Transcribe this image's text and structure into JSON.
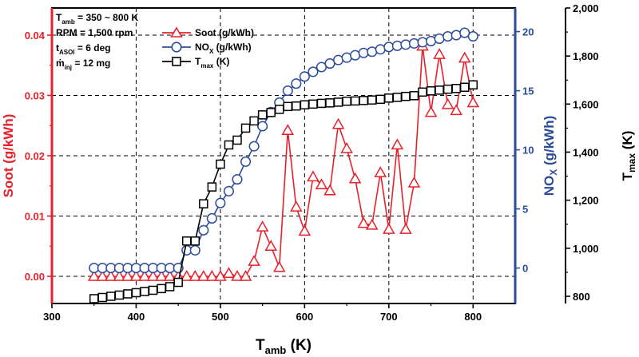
{
  "chart_data": {
    "type": "line",
    "title": "",
    "x": [
      350,
      360,
      370,
      380,
      390,
      400,
      410,
      420,
      430,
      440,
      450,
      460,
      470,
      480,
      490,
      500,
      510,
      520,
      530,
      540,
      550,
      560,
      570,
      580,
      590,
      600,
      610,
      620,
      630,
      640,
      650,
      660,
      670,
      680,
      690,
      700,
      710,
      720,
      730,
      740,
      750,
      760,
      770,
      780,
      790,
      800
    ],
    "xlabel": {
      "main": "T",
      "sub": "amb",
      "unit": " (K)"
    },
    "xlim": [
      300,
      850
    ],
    "xticks": [
      300,
      400,
      500,
      600,
      700,
      800
    ],
    "annotations": [
      {
        "main": "T",
        "sub": "amb",
        "rest": " = 350 ~ 800 K"
      },
      {
        "main": "RPM",
        "sub": "",
        "rest": " = 1,500 rpm"
      },
      {
        "main": "t",
        "sub": "ASOI",
        "rest": " = 6 deg"
      },
      {
        "main": "ṁ",
        "sub": "inj",
        "rest": " = 12 mg"
      }
    ],
    "axes": {
      "soot": {
        "label": "Soot (g/kWh)",
        "lim": [
          -0.0045,
          0.0445
        ],
        "ticks": [
          0.0,
          0.01,
          0.02,
          0.03,
          0.04
        ],
        "tick_labels": [
          "0.00",
          "0.01",
          "0.02",
          "0.03",
          "0.04"
        ],
        "color": "#e8202a"
      },
      "nox": {
        "label_main": "NO",
        "label_sub": "X",
        "label_unit": " (g/kWh)",
        "lim": [
          -3,
          22
        ],
        "ticks": [
          0,
          5,
          10,
          15,
          20
        ],
        "tick_labels": [
          "0",
          "5",
          "10",
          "15",
          "20"
        ],
        "color": "#2b4c9b"
      },
      "tmax": {
        "label_main": "T",
        "label_sub": "max",
        "label_unit": " (K)",
        "lim": [
          770,
          2000
        ],
        "ticks": [
          800,
          1000,
          1200,
          1400,
          1600,
          1800,
          2000
        ],
        "tick_labels": [
          "800",
          "1,000",
          "1,200",
          "1,400",
          "1,600",
          "1,800",
          "2,000"
        ],
        "color": "#000000"
      }
    },
    "series": [
      {
        "name": "Soot (g/kWh)",
        "legend_main": "Soot",
        "legend_sub": "",
        "legend_unit": " (g/kWh)",
        "axis": "soot",
        "marker": "triangle",
        "color": "#e8202a",
        "x": [
          350,
          360,
          370,
          380,
          390,
          400,
          410,
          420,
          430,
          440,
          450,
          460,
          470,
          480,
          490,
          500,
          510,
          520,
          530,
          540,
          550,
          560,
          570,
          580,
          590,
          600,
          610,
          620,
          630,
          640,
          650,
          660,
          670,
          680,
          690,
          700,
          710,
          720,
          730,
          740,
          750,
          760,
          770,
          780,
          790,
          800
        ],
        "values": [
          0,
          0,
          0,
          0,
          0,
          0,
          0,
          0,
          0,
          0,
          0,
          0,
          0,
          0,
          0,
          0,
          0.0005,
          0,
          0,
          0.0025,
          0.0082,
          0.005,
          0.0015,
          0.0242,
          0.0115,
          0.0075,
          0.0165,
          0.0152,
          0.0142,
          0.0252,
          0.0212,
          0.0162,
          0.0088,
          0.0085,
          0.0172,
          0.0078,
          0.0218,
          0.0078,
          0.0155,
          0.0382,
          0.0272,
          0.0368,
          0.0285,
          0.0275,
          0.0362,
          0.0288
        ]
      },
      {
        "name": "NOX (g/kWh)",
        "legend_main": "NO",
        "legend_sub": "X",
        "legend_unit": " (g/kWh)",
        "axis": "nox",
        "marker": "circle",
        "color": "#2b4c9b",
        "x": [
          350,
          360,
          370,
          380,
          390,
          400,
          410,
          420,
          430,
          440,
          450,
          460,
          470,
          480,
          490,
          500,
          510,
          520,
          530,
          540,
          550,
          560,
          570,
          580,
          590,
          600,
          610,
          620,
          630,
          640,
          650,
          660,
          670,
          680,
          690,
          700,
          710,
          720,
          730,
          740,
          750,
          760,
          770,
          780,
          790,
          800
        ],
        "values": [
          0,
          0,
          0,
          0,
          0,
          0,
          0,
          0,
          0,
          0,
          0,
          1.5,
          1.5,
          3.2,
          4.2,
          5.5,
          6.5,
          7.5,
          9.0,
          10.3,
          12.0,
          13.2,
          14.0,
          15.0,
          15.6,
          16.2,
          16.6,
          17.0,
          17.3,
          17.6,
          17.8,
          18.0,
          18.2,
          18.3,
          18.5,
          18.7,
          18.8,
          18.9,
          19.0,
          19.1,
          19.2,
          19.4,
          19.6,
          19.7,
          19.9,
          19.6
        ]
      },
      {
        "name": "Tmax (K)",
        "legend_main": "T",
        "legend_sub": "max",
        "legend_unit": " (K)",
        "axis": "tmax",
        "marker": "square",
        "color": "#000000",
        "x": [
          350,
          360,
          370,
          380,
          390,
          400,
          410,
          420,
          430,
          440,
          450,
          460,
          470,
          480,
          490,
          500,
          510,
          520,
          530,
          540,
          550,
          560,
          570,
          580,
          590,
          600,
          610,
          620,
          630,
          640,
          650,
          660,
          670,
          680,
          690,
          700,
          710,
          720,
          730,
          740,
          750,
          760,
          770,
          780,
          790,
          800
        ],
        "values": [
          790,
          795,
          800,
          805,
          810,
          815,
          820,
          825,
          832,
          840,
          858,
          1030,
          1030,
          1185,
          1255,
          1350,
          1430,
          1450,
          1500,
          1530,
          1555,
          1565,
          1578,
          1590,
          1592,
          1597,
          1600,
          1603,
          1605,
          1608,
          1612,
          1613,
          1615,
          1617,
          1620,
          1625,
          1628,
          1632,
          1635,
          1650,
          1655,
          1658,
          1662,
          1665,
          1670,
          1680
        ]
      }
    ]
  }
}
